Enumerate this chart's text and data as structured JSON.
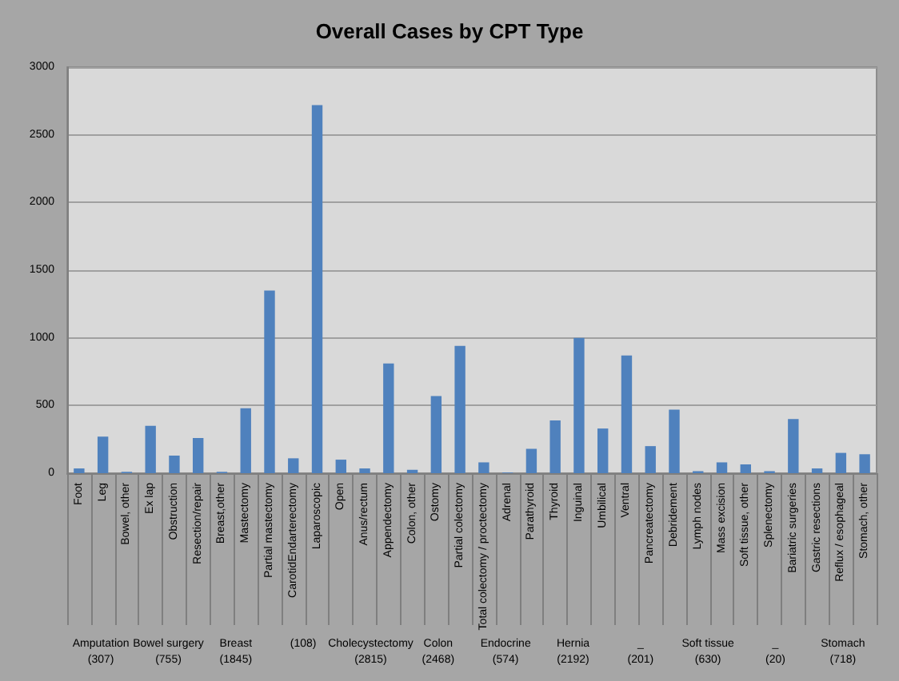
{
  "chart_data": {
    "type": "bar",
    "title": "Overall Cases by CPT Type",
    "categories": [
      "Foot",
      "Leg",
      "Bowel, other",
      "Ex lap",
      "Obstruction",
      "Resection/repair",
      "Breast,other",
      "Mastectomy",
      "Partial mastectomy",
      "CarotidEndarterectomy",
      "Laparoscopic",
      "Open",
      "Anus/rectum",
      "Appendectomy",
      "Colon, other",
      "Ostomy",
      "Partial colectomy",
      "Total colectomy / proctectomy",
      "Adrenal",
      "Parathyroid",
      "Thyroid",
      "Inguinal",
      "Umbilical",
      "Ventral",
      "Pancreatectomy",
      "Debridement",
      "Lymph nodes",
      "Mass excision",
      "Soft tissue, other",
      "Splenectomy",
      "Bariatric surgeries",
      "Gastric resections",
      "Reflux / esophageal",
      "Stomach, other"
    ],
    "values": [
      35,
      270,
      10,
      350,
      130,
      260,
      10,
      480,
      1350,
      110,
      2720,
      100,
      35,
      810,
      25,
      570,
      940,
      80,
      5,
      180,
      390,
      1000,
      330,
      870,
      200,
      470,
      15,
      80,
      65,
      15,
      400,
      35,
      150,
      140
    ],
    "color": "#4f81bd",
    "ylim": [
      0,
      3000
    ],
    "yticks": [
      0,
      500,
      1000,
      1500,
      2000,
      2500,
      3000
    ],
    "grid": "y",
    "annotations": [
      "Amputation\n(307)",
      "Bowel surgery\n(755)",
      "Breast\n(1845)",
      "(108)",
      "Cholecystectomy\n(2815)",
      "Colon\n(2468)",
      "Endocrine\n(574)",
      "Hernia\n(2192)",
      "_\n(201)",
      "Soft tissue\n(630)",
      "_\n(20)",
      "Stomach\n(718)"
    ]
  }
}
